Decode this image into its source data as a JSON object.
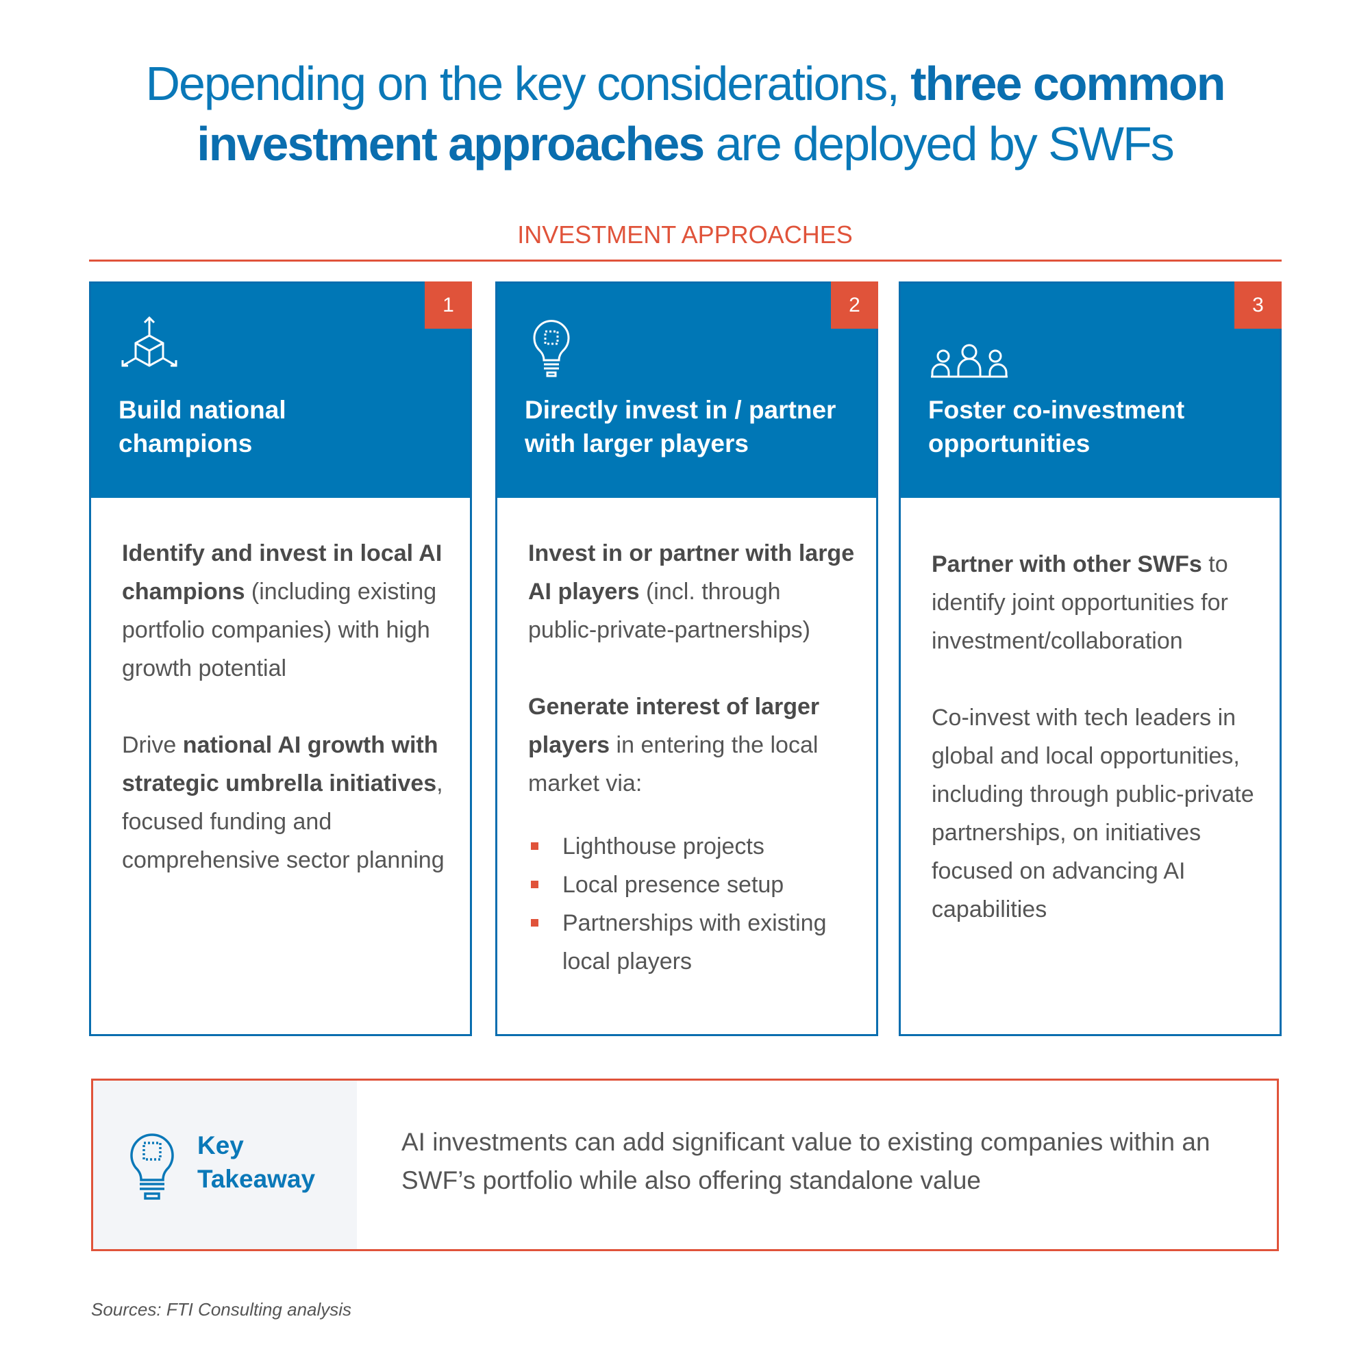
{
  "header": {
    "title_pre": "Depending on the key considerations, ",
    "title_bold1": "three common",
    "title_bold2": "investment approaches",
    "title_post": " are deployed by SWFs"
  },
  "section_label": "INVESTMENT APPROACHES",
  "colors": {
    "blue": "#0077b6",
    "red": "#e0533a",
    "text": "#555555"
  },
  "cards": [
    {
      "number": "1",
      "icon": "cube-arrows-icon",
      "title": "Build national champions",
      "p1_bold": "Identify and invest in local AI champions",
      "p1_rest": " (including existing portfolio companies) with high growth potential",
      "p2_pre": "Drive ",
      "p2_bold": "national AI growth with strategic umbrella initiatives",
      "p2_rest": ", focused funding and comprehensive sector planning"
    },
    {
      "number": "2",
      "icon": "lightbulb-chip-icon",
      "title": "Directly invest in / partner with larger players",
      "p1_bold": "Invest in or partner with large AI players",
      "p1_rest": " (incl. through public-private-partnerships)",
      "p2_bold": "Generate interest of larger players",
      "p2_rest": " in entering the local market via:",
      "bullets": [
        "Lighthouse projects",
        "Local presence setup",
        "Partnerships with existing local players"
      ]
    },
    {
      "number": "3",
      "icon": "people-group-icon",
      "title": "Foster co-investment opportunities",
      "p1_bold": "Partner with other SWFs",
      "p1_rest": " to identify joint opportunities for investment/collaboration",
      "p2_rest": "Co-invest with tech leaders in global and local opportunities, including through public-private partnerships, on initiatives focused on advancing AI capabilities"
    }
  ],
  "takeaway": {
    "label": "Key Takeaway",
    "text": "AI investments can add significant value to existing companies within an SWF’s portfolio while also offering standalone value"
  },
  "source": "Sources: FTI Consulting analysis"
}
